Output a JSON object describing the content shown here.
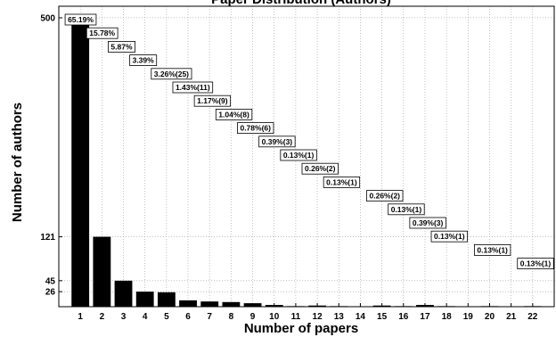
{
  "chart_data": {
    "type": "bar",
    "title": "Paper Distribution (Authors)",
    "xlabel": "Number of papers",
    "ylabel": "Number of authors",
    "categories": [
      "1",
      "2",
      "3",
      "4",
      "5",
      "6",
      "7",
      "8",
      "9",
      "10",
      "11",
      "12",
      "13",
      "14",
      "15",
      "16",
      "17",
      "18",
      "19",
      "20",
      "21",
      "22"
    ],
    "values": [
      500,
      121,
      45,
      26,
      25,
      11,
      9,
      8,
      6,
      3,
      1,
      2,
      1,
      0,
      2,
      1,
      3,
      1,
      0,
      1,
      0,
      1
    ],
    "yticks": [
      26,
      45,
      121,
      500
    ],
    "ylim": [
      0,
      520
    ],
    "xlim": [
      0,
      23
    ],
    "grid": true,
    "bar_color": "#000000",
    "annotations": [
      {
        "x": 1,
        "text": "65.19%"
      },
      {
        "x": 2,
        "text": "15.78%"
      },
      {
        "x": 3,
        "text": "5.87%"
      },
      {
        "x": 4,
        "text": "3.39%"
      },
      {
        "x": 5,
        "text": "3.26%(25)"
      },
      {
        "x": 6,
        "text": "1.43%(11)"
      },
      {
        "x": 7,
        "text": "1.17%(9)"
      },
      {
        "x": 8,
        "text": "1.04%(8)"
      },
      {
        "x": 9,
        "text": "0.78%(6)"
      },
      {
        "x": 10,
        "text": "0.39%(3)"
      },
      {
        "x": 11,
        "text": "0.13%(1)"
      },
      {
        "x": 12,
        "text": "0.26%(2)"
      },
      {
        "x": 13,
        "text": "0.13%(1)"
      },
      {
        "x": 15,
        "text": "0.26%(2)"
      },
      {
        "x": 16,
        "text": "0.13%(1)"
      },
      {
        "x": 17,
        "text": "0.39%(3)"
      },
      {
        "x": 18,
        "text": "0.13%(1)"
      },
      {
        "x": 20,
        "text": "0.13%(1)"
      },
      {
        "x": 22,
        "text": "0.13%(1)"
      }
    ]
  }
}
